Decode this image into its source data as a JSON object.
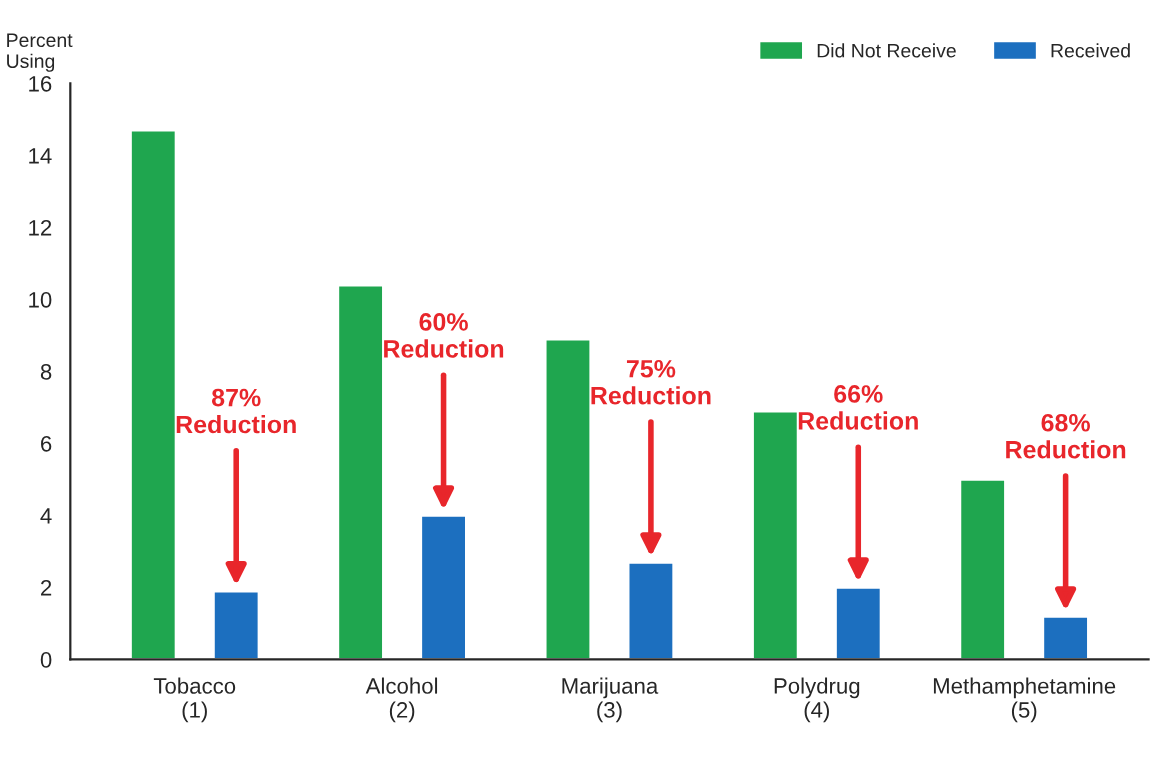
{
  "chart_data": {
    "type": "bar",
    "ylabel": "Percent\nUsing",
    "categories": [
      "Tobacco\n(1)",
      "Alcohol\n(2)",
      "Marijuana\n(3)",
      "Polydrug\n(4)",
      "Methamphetamine\n(5)"
    ],
    "series": [
      {
        "name": "Did Not Receive",
        "color": "#1fa64f",
        "values": [
          14.7,
          10.4,
          8.9,
          6.9,
          5.0
        ]
      },
      {
        "name": "Received",
        "color": "#1c6fbf",
        "values": [
          1.9,
          4.0,
          2.7,
          2.0,
          1.2
        ]
      }
    ],
    "ylim": [
      0,
      16
    ],
    "yticks": [
      0,
      2,
      4,
      6,
      8,
      10,
      12,
      14,
      16
    ],
    "grid": false,
    "legend": "top right",
    "annotations": [
      "87%\nReduction",
      "60%\nReduction",
      "75%\nReduction",
      "66%\nReduction",
      "68%\nReduction"
    ]
  }
}
